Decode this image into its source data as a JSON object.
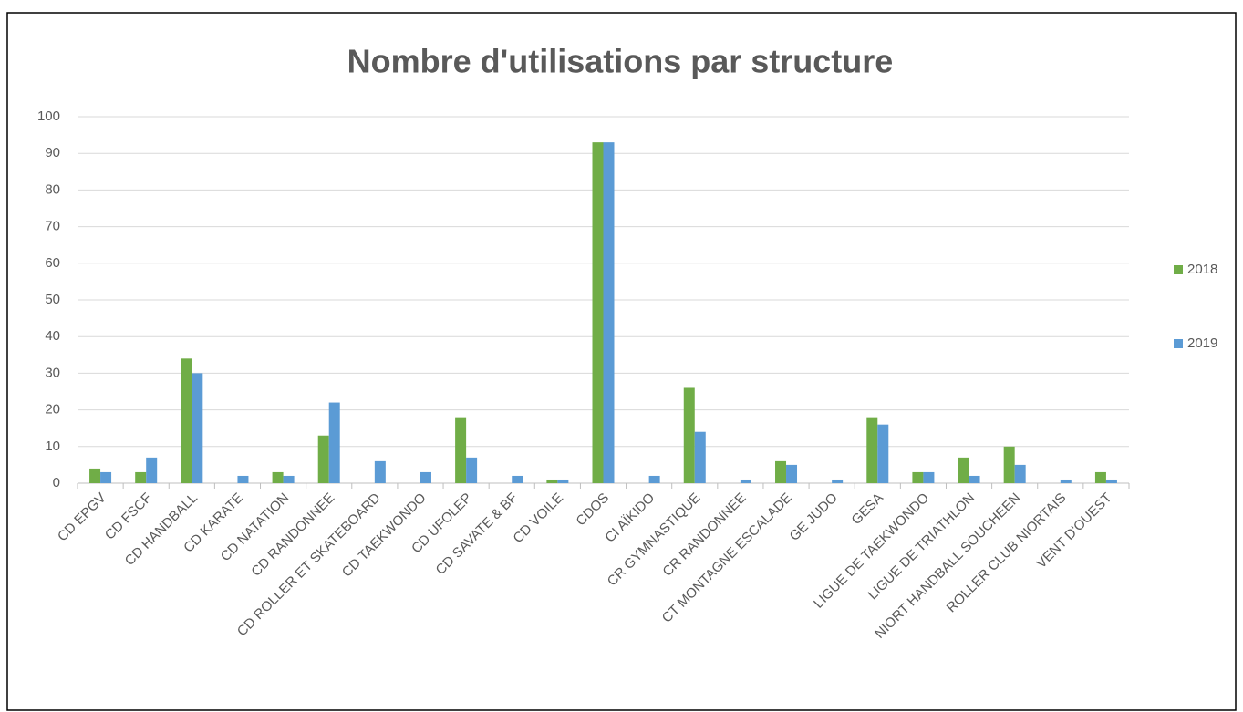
{
  "chart_data": {
    "type": "bar",
    "title": "Nombre d'utilisations par structure",
    "categories": [
      "CD EPGV",
      "CD FSCF",
      "CD HANDBALL",
      "CD KARATE",
      "CD NATATION",
      "CD RANDONNEE",
      "CD ROLLER ET SKATEBOARD",
      "CD TAEKWONDO",
      "CD UFOLEP",
      "CD SAVATE & BF",
      "CD VOILE",
      "CDOS",
      "CI AÏKIDO",
      "CR GYMNASTIQUE",
      "CR RANDONNEE",
      "CT MONTAGNE ESCALADE",
      "GE JUDO",
      "GESA",
      "LIGUE DE TAEKWONDO",
      "LIGUE DE TRIATHLON",
      "NIORT HANDBALL SOUCHEEN",
      "ROLLER CLUB NIORTAIS",
      "VENT D'OUEST"
    ],
    "series": [
      {
        "name": "2018",
        "color": "#70ad47",
        "values": [
          4,
          3,
          34,
          0,
          3,
          13,
          0,
          0,
          18,
          0,
          1,
          93,
          0,
          26,
          0,
          6,
          0,
          18,
          3,
          7,
          10,
          0,
          3
        ]
      },
      {
        "name": "2019",
        "color": "#5b9bd5",
        "values": [
          3,
          7,
          30,
          2,
          2,
          22,
          6,
          3,
          7,
          2,
          1,
          93,
          2,
          14,
          1,
          5,
          1,
          16,
          3,
          2,
          5,
          1,
          1
        ]
      }
    ],
    "ylim": [
      0,
      100
    ],
    "yticks": [
      0,
      10,
      20,
      30,
      40,
      50,
      60,
      70,
      80,
      90,
      100
    ],
    "grid": true,
    "legend": "right"
  }
}
